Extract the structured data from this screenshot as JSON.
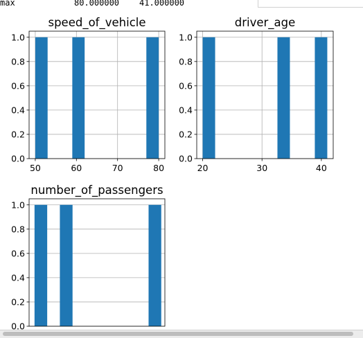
{
  "output_line": {
    "label": "max",
    "value_1": "80.000000",
    "value_2": "41.000000"
  },
  "chart_data": [
    {
      "type": "bar",
      "title": "speed_of_vehicle",
      "xlabel": "",
      "ylabel": "",
      "xlim": [
        48.5,
        81.5
      ],
      "ylim": [
        0,
        1.05
      ],
      "xticks": [
        50,
        60,
        70,
        80
      ],
      "yticks": [
        0.0,
        0.2,
        0.4,
        0.6,
        0.8,
        1.0
      ],
      "bins": [
        [
          50,
          53
        ],
        [
          59,
          62
        ],
        [
          77,
          80
        ]
      ],
      "values": [
        1,
        1,
        1
      ],
      "grid": true,
      "color": "#1f77b4"
    },
    {
      "type": "bar",
      "title": "driver_age",
      "xlabel": "",
      "ylabel": "",
      "xlim": [
        19.0,
        42.0
      ],
      "ylim": [
        0,
        1.05
      ],
      "xticks": [
        20,
        30,
        40
      ],
      "yticks": [
        0.0,
        0.2,
        0.4,
        0.6,
        0.8,
        1.0
      ],
      "bins": [
        [
          20,
          22.1
        ],
        [
          32.6,
          34.7
        ],
        [
          38.9,
          41
        ]
      ],
      "values": [
        1,
        1,
        1
      ],
      "grid": true,
      "color": "#1f77b4"
    },
    {
      "type": "bar",
      "title": "number_of_passengers",
      "xlabel": "",
      "ylabel": "",
      "xlim": [
        0.7,
        8.2
      ],
      "ylim": [
        0,
        1.05
      ],
      "xticks": [],
      "yticks": [
        0.0,
        0.2,
        0.4,
        0.6,
        0.8,
        1.0
      ],
      "bins": [
        [
          1.0,
          1.7
        ],
        [
          2.4,
          3.1
        ],
        [
          7.3,
          8.0
        ]
      ],
      "values": [
        1,
        1,
        1
      ],
      "grid": true,
      "color": "#1f77b4"
    }
  ]
}
